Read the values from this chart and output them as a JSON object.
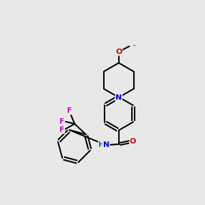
{
  "background_color": "#e8e8e8",
  "atom_colors": {
    "N": "#0000cc",
    "O": "#cc0000",
    "F": "#cc00cc",
    "C": "#000000",
    "H": "#008080"
  },
  "bond_color": "#000000",
  "bond_width": 1.5,
  "figsize": [
    3.0,
    3.0
  ],
  "dpi": 100,
  "xlim": [
    0,
    10
  ],
  "ylim": [
    0,
    10
  ]
}
